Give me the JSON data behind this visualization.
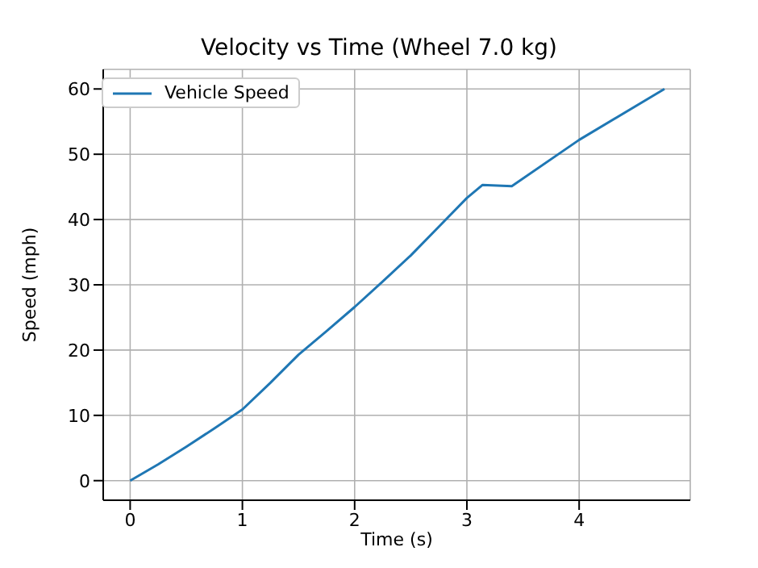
{
  "chart_data": {
    "type": "line",
    "title": "Velocity vs Time (Wheel 7.0 kg)",
    "xlabel": "Time (s)",
    "ylabel": "Speed (mph)",
    "x": [
      0,
      0.25,
      0.5,
      0.75,
      1,
      1.25,
      1.5,
      1.75,
      2,
      2.25,
      2.5,
      2.75,
      3,
      3.14,
      3.4,
      4,
      4.76
    ],
    "series": [
      {
        "name": "Vehicle Speed",
        "color": "#1f77b4",
        "values": [
          0,
          2.5,
          5.2,
          8,
          10.9,
          15,
          19.3,
          22.9,
          26.6,
          30.5,
          34.5,
          38.9,
          43.3,
          45.3,
          45.1,
          52.2,
          60
        ]
      }
    ],
    "xlim": [
      -0.24,
      4.99
    ],
    "ylim": [
      -3,
      63
    ],
    "xticks": [
      0,
      1,
      2,
      3,
      4
    ],
    "yticks": [
      0,
      10,
      20,
      30,
      40,
      50,
      60
    ],
    "grid": true,
    "legend": "top left",
    "marker": "none",
    "line_style": "solid"
  }
}
